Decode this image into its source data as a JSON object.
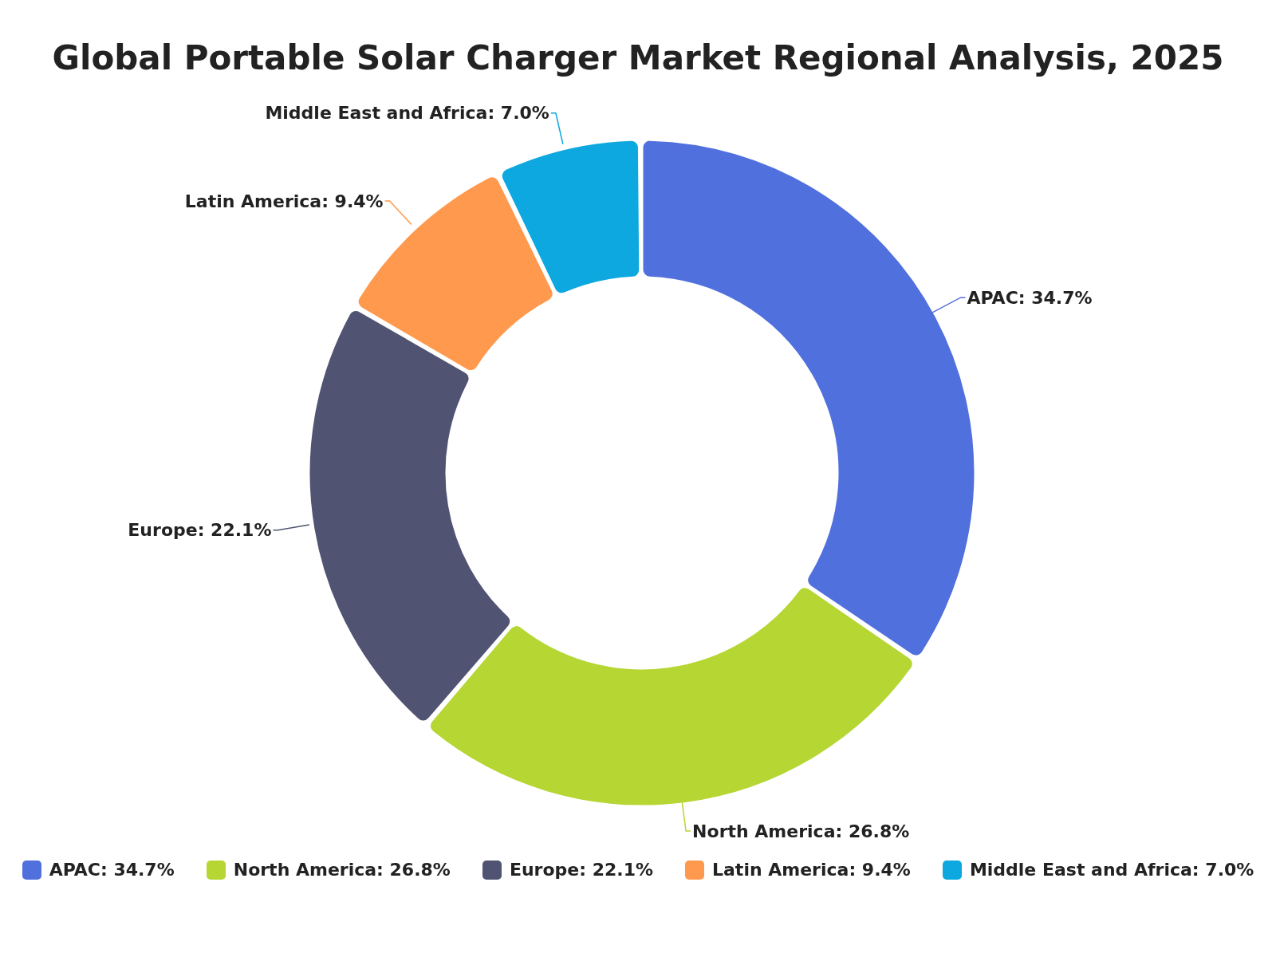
{
  "chart_data": {
    "type": "donut",
    "title": "Global Portable Solar Charger Market Regional Analysis, 2025",
    "categories": [
      "APAC",
      "North America",
      "Europe",
      "Latin America",
      "Middle East and Africa"
    ],
    "values": [
      34.7,
      26.8,
      22.1,
      9.4,
      7.0
    ],
    "value_labels": [
      "34.7%",
      "26.8%",
      "22.1%",
      "9.4%",
      "7.0%"
    ],
    "colors": [
      "#5070dd",
      "#b6d634",
      "#505372",
      "#ff994d",
      "#0ca8df"
    ],
    "legend": "bottom"
  }
}
